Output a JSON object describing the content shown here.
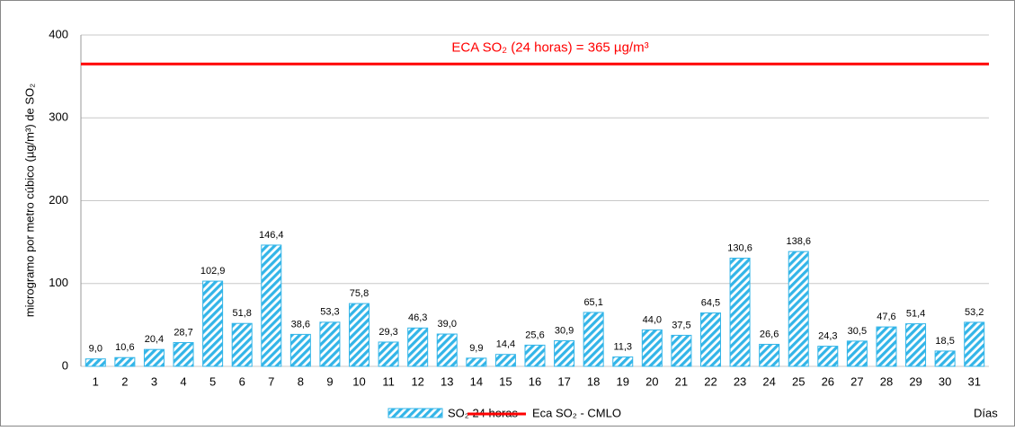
{
  "chart_data": {
    "type": "bar",
    "categories": [
      "1",
      "2",
      "3",
      "4",
      "5",
      "6",
      "7",
      "8",
      "9",
      "10",
      "11",
      "12",
      "13",
      "14",
      "15",
      "16",
      "17",
      "18",
      "19",
      "20",
      "21",
      "22",
      "23",
      "24",
      "25",
      "26",
      "27",
      "28",
      "29",
      "30",
      "31"
    ],
    "series": [
      {
        "name": "SO₂  24 horas",
        "color": "#33b5e8",
        "values": [
          9.0,
          10.6,
          20.4,
          28.7,
          102.9,
          51.8,
          146.4,
          38.6,
          53.3,
          75.8,
          29.3,
          46.3,
          39.0,
          9.9,
          14.4,
          25.6,
          30.9,
          65.1,
          11.3,
          44.0,
          37.5,
          64.5,
          130.6,
          26.6,
          138.6,
          24.3,
          30.5,
          47.6,
          51.4,
          18.5,
          53.2
        ],
        "value_labels": [
          "9,0",
          "10,6",
          "20,4",
          "28,7",
          "102,9",
          "51,8",
          "146,4",
          "38,6",
          "53,3",
          "75,8",
          "29,3",
          "46,3",
          "39,0",
          "9,9",
          "14,4",
          "25,6",
          "30,9",
          "65,1",
          "11,3",
          "44,0",
          "37,5",
          "64,5",
          "130,6",
          "26,6",
          "138,6",
          "24,3",
          "30,5",
          "47,6",
          "51,4",
          "18,5",
          "53,2"
        ]
      }
    ],
    "reference_line": {
      "name": "Eca SO₂  - CMLO",
      "value": 365,
      "color": "#ff0000",
      "label": "ECA SO₂ (24 horas) = 365 µg/m³"
    },
    "ylabel": "microgramo por metro cúbico (µg/m³) de SO₂",
    "xlabel": "Días",
    "ylim": [
      0,
      400
    ],
    "yticks": [
      0,
      100,
      200,
      300,
      400
    ],
    "grid": true
  }
}
